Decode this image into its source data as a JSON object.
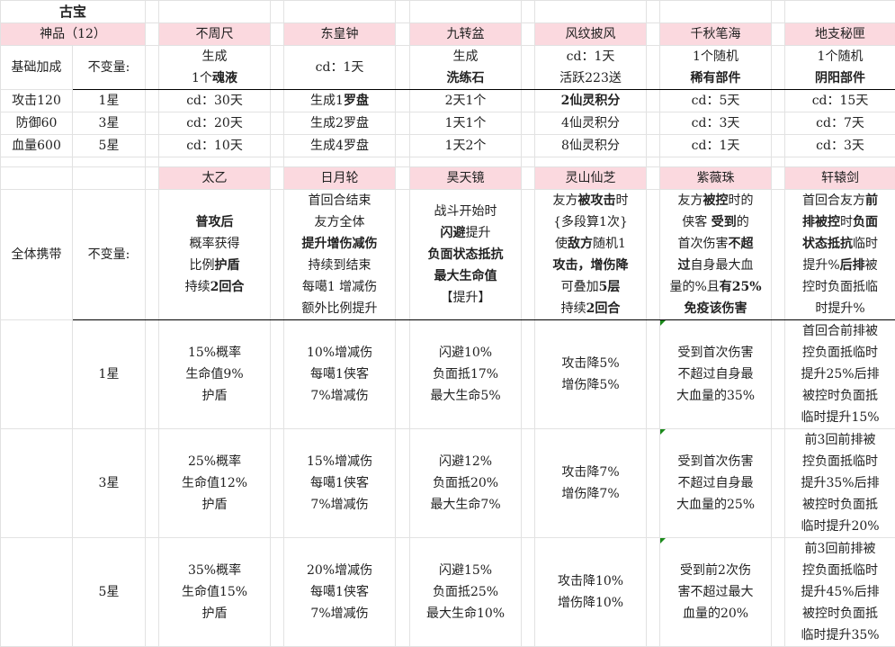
{
  "colors": {
    "header_bg": "#fbd9df",
    "grid": "#e2e2e2",
    "note_marker": "#1a8a1a"
  },
  "title": "古宝",
  "category": "神品（12）",
  "section1": {
    "items": [
      "不周尺",
      "东皇钟",
      "九转盆",
      "风纹披风",
      "千秋笔海",
      "地支秘匣"
    ],
    "base_label": "基础加成",
    "invariant_label": "不变量:",
    "base": [
      [
        [
          {
            "t": "生成"
          }
        ],
        [
          {
            "t": "1个"
          },
          {
            "t": "魂液",
            "b": true
          }
        ]
      ],
      [
        [
          {
            "t": "cd：1天"
          }
        ]
      ],
      [
        [
          {
            "t": "生成"
          }
        ],
        [
          {
            "t": "洗练石",
            "b": true
          }
        ]
      ],
      [
        [
          {
            "t": "cd：1天"
          }
        ],
        [
          {
            "t": "活跃223送"
          }
        ]
      ],
      [
        [
          {
            "t": "1个随机"
          }
        ],
        [
          {
            "t": "稀有部件",
            "b": true
          }
        ]
      ],
      [
        [
          {
            "t": "1个随机"
          }
        ],
        [
          {
            "t": "阴阳部件",
            "b": true
          }
        ]
      ]
    ],
    "rows": [
      {
        "stat": "攻击120",
        "star": "1星",
        "cells": [
          [
            [
              {
                "t": "cd：30天"
              }
            ]
          ],
          [
            [
              {
                "t": "生成1"
              },
              {
                "t": "罗盘",
                "b": true
              }
            ]
          ],
          [
            [
              {
                "t": "2天1个"
              }
            ]
          ],
          [
            [
              {
                "t": "2仙灵积分",
                "b": true
              }
            ]
          ],
          [
            [
              {
                "t": "cd：5天"
              }
            ]
          ],
          [
            [
              {
                "t": "cd：15天"
              }
            ]
          ]
        ]
      },
      {
        "stat": "防御60",
        "star": "3星",
        "cells": [
          [
            [
              {
                "t": "cd：20天"
              }
            ]
          ],
          [
            [
              {
                "t": "生成2罗盘"
              }
            ]
          ],
          [
            [
              {
                "t": "1天1个"
              }
            ]
          ],
          [
            [
              {
                "t": "4仙灵积分"
              }
            ]
          ],
          [
            [
              {
                "t": "cd：3天"
              }
            ]
          ],
          [
            [
              {
                "t": "cd：7天"
              }
            ]
          ]
        ]
      },
      {
        "stat": "血量600",
        "star": "5星",
        "cells": [
          [
            [
              {
                "t": "cd：10天"
              }
            ]
          ],
          [
            [
              {
                "t": "生成4罗盘"
              }
            ]
          ],
          [
            [
              {
                "t": "1天2个"
              }
            ]
          ],
          [
            [
              {
                "t": "8仙灵积分"
              }
            ]
          ],
          [
            [
              {
                "t": "cd：1天"
              }
            ]
          ],
          [
            [
              {
                "t": "cd：3天"
              }
            ]
          ]
        ]
      }
    ]
  },
  "section2": {
    "items": [
      "太乙",
      "日月轮",
      "昊天镜",
      "灵山仙芝",
      "紫薇珠",
      "轩辕剑"
    ],
    "carry_label": "全体携带",
    "invariant_label": "不变量:",
    "base": [
      [
        [
          {
            "t": "普攻后",
            "b": true
          }
        ],
        [
          {
            "t": "概率获得"
          }
        ],
        [
          {
            "t": "比例"
          },
          {
            "t": "护盾",
            "b": true
          }
        ],
        [
          {
            "t": "持续"
          },
          {
            "t": "2回合",
            "b": true
          }
        ]
      ],
      [
        [
          {
            "t": "首回合结束"
          }
        ],
        [
          {
            "t": "友方全体"
          }
        ],
        [
          {
            "t": "提升增伤减伤",
            "b": true
          }
        ],
        [
          {
            "t": "持续到结束"
          }
        ],
        [
          {
            "t": "每噶1 增减伤"
          }
        ],
        [
          {
            "t": "额外比例提升"
          }
        ]
      ],
      [
        [
          {
            "t": "战斗开始时"
          }
        ],
        [
          {
            "t": "闪避",
            "b": true
          },
          {
            "t": "提升"
          }
        ],
        [
          {
            "t": "负面状态抵抗",
            "b": true
          }
        ],
        [
          {
            "t": "最大生命值",
            "b": true
          }
        ],
        [
          {
            "t": "【提升】"
          }
        ]
      ],
      [
        [
          {
            "t": "友方"
          },
          {
            "t": "被攻击",
            "b": true
          },
          {
            "t": "时"
          }
        ],
        [
          {
            "t": "{多段算1次}"
          }
        ],
        [
          {
            "t": "使"
          },
          {
            "t": "敌方",
            "b": true
          },
          {
            "t": "随机1"
          }
        ],
        [
          {
            "t": "攻击，增伤降",
            "b": true
          }
        ],
        [
          {
            "t": "可叠加"
          },
          {
            "t": "5层",
            "b": true
          }
        ],
        [
          {
            "t": "持续"
          },
          {
            "t": "2回合",
            "b": true
          }
        ]
      ],
      [
        [
          {
            "t": "友方"
          },
          {
            "t": "被控",
            "b": true
          },
          {
            "t": "时的"
          }
        ],
        [
          {
            "t": "侠客 "
          },
          {
            "t": "受到",
            "b": true
          },
          {
            "t": "的"
          }
        ],
        [
          {
            "t": "首次伤害"
          },
          {
            "t": "不超",
            "b": true
          }
        ],
        [
          {
            "t": "过",
            "b": true
          },
          {
            "t": "自身最大血"
          }
        ],
        [
          {
            "t": "量的%且"
          },
          {
            "t": "有25%",
            "b": true
          }
        ],
        [
          {
            "t": "免疫该伤害",
            "b": true
          }
        ]
      ],
      [
        [
          {
            "t": "首回合友方"
          },
          {
            "t": "前",
            "b": true
          }
        ],
        [
          {
            "t": "排被控",
            "b": true
          },
          {
            "t": "时"
          },
          {
            "t": "负面",
            "b": true
          }
        ],
        [
          {
            "t": "状态抵抗",
            "b": true
          },
          {
            "t": "临时"
          }
        ],
        [
          {
            "t": "提升%"
          },
          {
            "t": "后排",
            "b": true
          },
          {
            "t": "被"
          }
        ],
        [
          {
            "t": "控时负面抵临"
          }
        ],
        [
          {
            "t": "时提升%"
          }
        ]
      ]
    ],
    "rows": [
      {
        "star": "1星",
        "cells": [
          [
            [
              {
                "t": "15%概率"
              }
            ],
            [
              {
                "t": "生命值9%"
              }
            ],
            [
              {
                "t": "护盾"
              }
            ]
          ],
          [
            [
              {
                "t": "10%增减伤"
              }
            ],
            [
              {
                "t": "每噶1侠客"
              }
            ],
            [
              {
                "t": "7%增减伤"
              }
            ]
          ],
          [
            [
              {
                "t": "闪避10%"
              }
            ],
            [
              {
                "t": "负面抵17%"
              }
            ],
            [
              {
                "t": "最大生命5%"
              }
            ]
          ],
          [
            [
              {
                "t": "攻击降5%"
              }
            ],
            [
              {
                "t": "增伤降5%"
              }
            ]
          ],
          [
            [
              {
                "t": "受到首次伤害"
              }
            ],
            [
              {
                "t": "不超过自身最"
              }
            ],
            [
              {
                "t": "大血量的35%"
              }
            ]
          ],
          [
            [
              {
                "t": "首回合前排被"
              }
            ],
            [
              {
                "t": "控负面抵临时"
              }
            ],
            [
              {
                "t": "提升25%后排"
              }
            ],
            [
              {
                "t": "被控时负面抵"
              }
            ],
            [
              {
                "t": "临时提升15%"
              }
            ]
          ]
        ]
      },
      {
        "star": "3星",
        "cells": [
          [
            [
              {
                "t": "25%概率"
              }
            ],
            [
              {
                "t": "生命值12%"
              }
            ],
            [
              {
                "t": "护盾"
              }
            ]
          ],
          [
            [
              {
                "t": "15%增减伤"
              }
            ],
            [
              {
                "t": "每噶1侠客"
              }
            ],
            [
              {
                "t": "7%增减伤"
              }
            ]
          ],
          [
            [
              {
                "t": "闪避12%"
              }
            ],
            [
              {
                "t": "负面抵20%"
              }
            ],
            [
              {
                "t": "最大生命7%"
              }
            ]
          ],
          [
            [
              {
                "t": "攻击降7%"
              }
            ],
            [
              {
                "t": "增伤降7%"
              }
            ]
          ],
          [
            [
              {
                "t": "受到首次伤害"
              }
            ],
            [
              {
                "t": "不超过自身最"
              }
            ],
            [
              {
                "t": "大血量的25%"
              }
            ]
          ],
          [
            [
              {
                "t": "前3回前排被"
              }
            ],
            [
              {
                "t": "控负面抵临时"
              }
            ],
            [
              {
                "t": "提升35%后排"
              }
            ],
            [
              {
                "t": "被控时负面抵"
              }
            ],
            [
              {
                "t": "临时提升20%"
              }
            ]
          ]
        ]
      },
      {
        "star": "5星",
        "cells": [
          [
            [
              {
                "t": "35%概率"
              }
            ],
            [
              {
                "t": "生命值15%"
              }
            ],
            [
              {
                "t": "护盾"
              }
            ]
          ],
          [
            [
              {
                "t": "20%增减伤"
              }
            ],
            [
              {
                "t": "每噶1侠客"
              }
            ],
            [
              {
                "t": "7%增减伤"
              }
            ]
          ],
          [
            [
              {
                "t": "闪避15%"
              }
            ],
            [
              {
                "t": "负面抵25%"
              }
            ],
            [
              {
                "t": "最大生命10%"
              }
            ]
          ],
          [
            [
              {
                "t": "攻击降10%"
              }
            ],
            [
              {
                "t": "增伤降10%"
              }
            ]
          ],
          [
            [
              {
                "t": "受到前2次伤"
              }
            ],
            [
              {
                "t": "害不超过最大"
              }
            ],
            [
              {
                "t": "血量的20%"
              }
            ]
          ],
          [
            [
              {
                "t": "前3回前排被"
              }
            ],
            [
              {
                "t": "控负面抵临时"
              }
            ],
            [
              {
                "t": "提升45%后排"
              }
            ],
            [
              {
                "t": "被控时负面抵"
              }
            ],
            [
              {
                "t": "临时提升35%"
              }
            ]
          ]
        ]
      }
    ]
  }
}
